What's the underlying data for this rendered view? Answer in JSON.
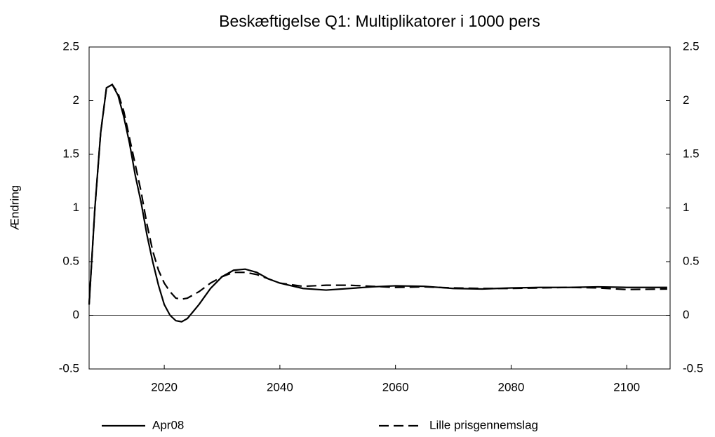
{
  "chart_data": {
    "type": "line",
    "title": "Beskæftigelse Q1: Multiplikatorer i 1000 pers",
    "y_label": "Ændring",
    "x": [
      2007,
      2008,
      2009,
      2010,
      2011,
      2012,
      2013,
      2014,
      2015,
      2016,
      2017,
      2018,
      2019,
      2020,
      2021,
      2022,
      2023,
      2024,
      2026,
      2028,
      2030,
      2032,
      2034,
      2036,
      2038,
      2040,
      2044,
      2048,
      2052,
      2056,
      2060,
      2065,
      2070,
      2075,
      2080,
      2085,
      2090,
      2095,
      2100,
      2107
    ],
    "series": [
      {
        "name": "Apr08",
        "color": "#000000",
        "dash": "solid",
        "values": [
          0.1,
          1.0,
          1.7,
          2.12,
          2.15,
          2.05,
          1.85,
          1.6,
          1.3,
          1.05,
          0.75,
          0.5,
          0.28,
          0.1,
          0.0,
          -0.05,
          -0.06,
          -0.03,
          0.1,
          0.25,
          0.36,
          0.42,
          0.43,
          0.4,
          0.34,
          0.3,
          0.25,
          0.235,
          0.25,
          0.265,
          0.275,
          0.27,
          0.25,
          0.245,
          0.255,
          0.26,
          0.26,
          0.265,
          0.26,
          0.26
        ]
      },
      {
        "name": "Lille prisgennemslag",
        "color": "#000000",
        "dash": "dashed",
        "values": [
          0.1,
          1.0,
          1.7,
          2.12,
          2.15,
          2.07,
          1.9,
          1.65,
          1.4,
          1.15,
          0.85,
          0.6,
          0.42,
          0.3,
          0.22,
          0.16,
          0.15,
          0.16,
          0.22,
          0.3,
          0.36,
          0.4,
          0.4,
          0.38,
          0.34,
          0.3,
          0.27,
          0.28,
          0.28,
          0.27,
          0.26,
          0.265,
          0.255,
          0.25,
          0.25,
          0.255,
          0.26,
          0.255,
          0.24,
          0.245
        ]
      }
    ],
    "xlim": [
      2007,
      2107.5
    ],
    "xticks": [
      2020,
      2040,
      2060,
      2080,
      2100
    ],
    "ylim": [
      -0.5,
      2.5
    ],
    "yticks": [
      -0.5,
      0,
      0.5,
      1,
      1.5,
      2,
      2.5
    ],
    "y2lim": [
      -0.5,
      2.5
    ],
    "y2ticks": [
      -0.5,
      0,
      0.5,
      1,
      1.5,
      2,
      2.5
    ],
    "legend": "bottom"
  }
}
